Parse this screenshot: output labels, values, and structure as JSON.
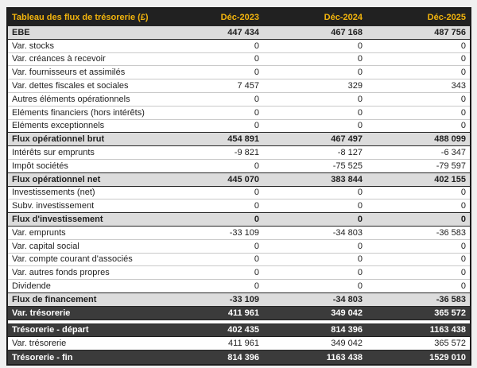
{
  "table": {
    "title": "Tableau des flux de trésorerie (£)",
    "columns": [
      "Déc-2023",
      "Déc-2024",
      "Déc-2025"
    ],
    "rows": [
      {
        "label": "EBE",
        "values": [
          "447 434",
          "467 168",
          "487 756"
        ]
      },
      {
        "label": "Var. stocks",
        "values": [
          "0",
          "0",
          "0"
        ]
      },
      {
        "label": "Var. créances à recevoir",
        "values": [
          "0",
          "0",
          "0"
        ]
      },
      {
        "label": "Var. fournisseurs et assimilés",
        "values": [
          "0",
          "0",
          "0"
        ]
      },
      {
        "label": "Var. dettes fiscales et sociales",
        "values": [
          "7 457",
          "329",
          "343"
        ]
      },
      {
        "label": "Autres éléments opérationnels",
        "values": [
          "0",
          "0",
          "0"
        ]
      },
      {
        "label": "Eléments financiers (hors intérêts)",
        "values": [
          "0",
          "0",
          "0"
        ]
      },
      {
        "label": "Eléments exceptionnels",
        "values": [
          "0",
          "0",
          "0"
        ]
      },
      {
        "label": "Flux opérationnel brut",
        "values": [
          "454 891",
          "467 497",
          "488 099"
        ]
      },
      {
        "label": "Intérêts sur emprunts",
        "values": [
          "-9 821",
          "-8 127",
          "-6 347"
        ]
      },
      {
        "label": "Impôt sociétés",
        "values": [
          "0",
          "-75 525",
          "-79 597"
        ]
      },
      {
        "label": "Flux opérationnel net",
        "values": [
          "445 070",
          "383 844",
          "402 155"
        ]
      },
      {
        "label": "Investissements (net)",
        "values": [
          "0",
          "0",
          "0"
        ]
      },
      {
        "label": "Subv. investissement",
        "values": [
          "0",
          "0",
          "0"
        ]
      },
      {
        "label": "Flux d'investissement",
        "values": [
          "0",
          "0",
          "0"
        ]
      },
      {
        "label": "Var. emprunts",
        "values": [
          "-33 109",
          "-34 803",
          "-36 583"
        ]
      },
      {
        "label": "Var. capital social",
        "values": [
          "0",
          "0",
          "0"
        ]
      },
      {
        "label": "Var. compte courant d'associés",
        "values": [
          "0",
          "0",
          "0"
        ]
      },
      {
        "label": "Var. autres fonds propres",
        "values": [
          "0",
          "0",
          "0"
        ]
      },
      {
        "label": "Dividende",
        "values": [
          "0",
          "0",
          "0"
        ]
      },
      {
        "label": "Flux de financement",
        "values": [
          "-33 109",
          "-34 803",
          "-36 583"
        ]
      },
      {
        "label": "Var. trésorerie",
        "values": [
          "411 961",
          "349 042",
          "365 572"
        ]
      }
    ],
    "summary": [
      {
        "label": "Trésorerie - départ",
        "values": [
          "402 435",
          "814 396",
          "1163 438"
        ]
      },
      {
        "label": "Var. trésorerie",
        "values": [
          "411 961",
          "349 042",
          "365 572"
        ]
      },
      {
        "label": "Trésorerie - fin",
        "values": [
          "814 396",
          "1163 438",
          "1529 010"
        ]
      }
    ]
  },
  "colors": {
    "header_bg": "#212121",
    "header_text": "#f2b40d",
    "total_row_bg": "#dcdcdc",
    "dark_row_bg": "#3b3b3b",
    "page_bg": "#f0f0f0",
    "row_separator": "#c9c9c9"
  }
}
